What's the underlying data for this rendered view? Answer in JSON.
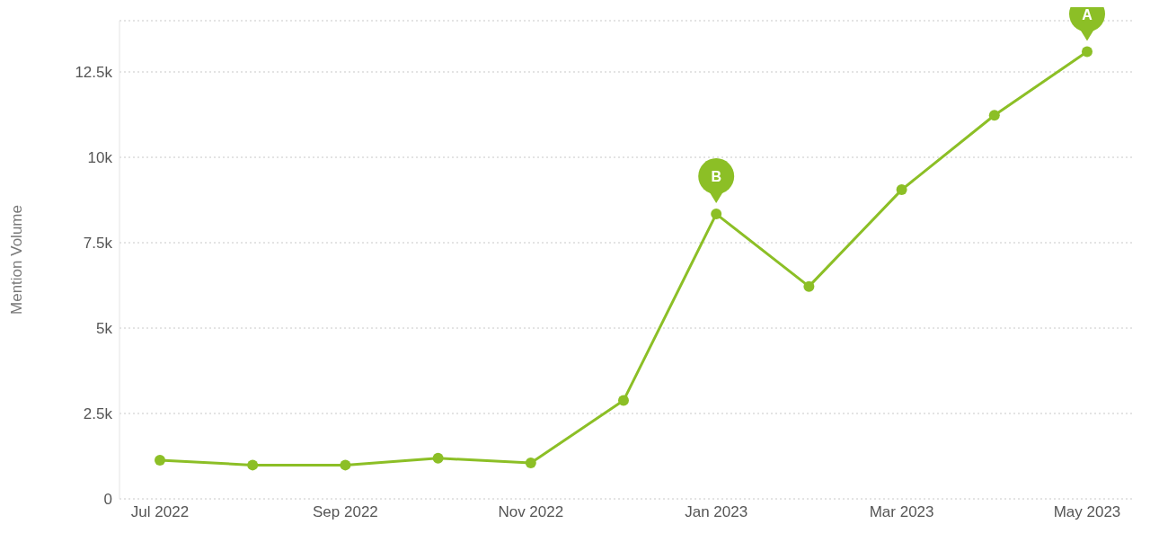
{
  "chart_data": {
    "type": "line",
    "ylabel": "Mention Volume",
    "categories": [
      "Jul 2022",
      null,
      "Sep 2022",
      null,
      "Nov 2022",
      null,
      "Jan 2023",
      null,
      "Mar 2023",
      null,
      "May 2023"
    ],
    "series": [
      {
        "color": "#8cbf26",
        "values": [
          1130,
          990,
          990,
          1190,
          1050,
          2880,
          8340,
          6220,
          9050,
          11230,
          13090
        ]
      }
    ],
    "ylim": [
      0,
      14000
    ],
    "yticks": [
      0,
      {
        "value": 2500,
        "label": "2.5k"
      },
      {
        "value": 5000,
        "label": "5k"
      },
      {
        "value": 7500,
        "label": "7.5k"
      },
      {
        "value": 10000,
        "label": "10k"
      },
      {
        "value": 12500,
        "label": "12.5k"
      }
    ],
    "grid": "y",
    "marker": "circle",
    "line_style": "solid",
    "annotations": [
      {
        "text": "A",
        "x": "May 2023",
        "y": 13090
      },
      {
        "text": "B",
        "x": "Jan 2023",
        "y": 8340
      }
    ]
  }
}
